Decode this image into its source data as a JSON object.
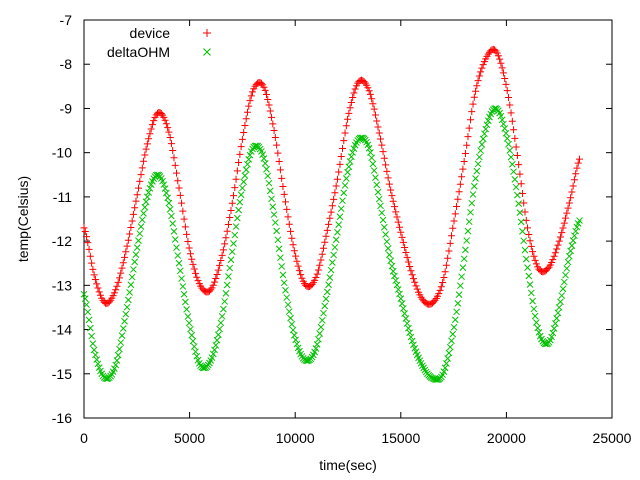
{
  "chart_data": {
    "type": "scatter",
    "title": "",
    "xlabel": "time(sec)",
    "ylabel": "temp(Celsius)",
    "xlim": [
      0,
      25000
    ],
    "ylim": [
      -16,
      -7
    ],
    "xticks": [
      0,
      5000,
      10000,
      15000,
      20000,
      25000
    ],
    "yticks": [
      -16,
      -15,
      -14,
      -13,
      -12,
      -11,
      -10,
      -9,
      -8,
      -7
    ],
    "xtick_labels": [
      "0",
      "5000",
      "10000",
      "15000",
      "20000",
      "25000"
    ],
    "ytick_labels": [
      "-16",
      "-15",
      "-14",
      "-13",
      "-12",
      "-11",
      "-10",
      "-9",
      "-8",
      "-7"
    ],
    "grid": false,
    "legend": "top-left",
    "series": [
      {
        "name": "device",
        "marker": "plus",
        "color": "#ff0000",
        "x": [
          0,
          500,
          1000,
          1500,
          2000,
          2500,
          3000,
          3500,
          4000,
          4500,
          5000,
          5500,
          6000,
          6500,
          7000,
          7500,
          8000,
          8500,
          9000,
          9500,
          10000,
          10500,
          11000,
          11500,
          12000,
          12500,
          13000,
          13500,
          14000,
          14500,
          15000,
          15500,
          16000,
          16500,
          17000,
          17500,
          18000,
          18500,
          19000,
          19500,
          20000,
          20500,
          21000,
          21500,
          22000,
          22500,
          23000,
          23500
        ],
        "y": [
          -11.7,
          -12.8,
          -13.4,
          -13.1,
          -12.2,
          -11.0,
          -9.8,
          -9.1,
          -9.5,
          -10.8,
          -12.2,
          -13.0,
          -13.1,
          -12.4,
          -11.2,
          -9.7,
          -8.6,
          -8.5,
          -9.5,
          -11.0,
          -12.3,
          -13.0,
          -12.8,
          -11.8,
          -10.6,
          -9.2,
          -8.4,
          -8.6,
          -9.6,
          -10.8,
          -11.8,
          -12.7,
          -13.3,
          -13.4,
          -12.9,
          -11.6,
          -10.2,
          -8.7,
          -7.9,
          -7.7,
          -8.5,
          -10.0,
          -11.7,
          -12.6,
          -12.6,
          -12.0,
          -11.1,
          -10.1
        ]
      },
      {
        "name": "deltaOHM",
        "marker": "cross",
        "color": "#00c000",
        "x": [
          0,
          500,
          1000,
          1500,
          2000,
          2500,
          3000,
          3500,
          4000,
          4500,
          5000,
          5500,
          6000,
          6500,
          7000,
          7500,
          8000,
          8500,
          9000,
          9500,
          10000,
          10500,
          11000,
          11500,
          12000,
          12500,
          13000,
          13500,
          14000,
          14500,
          15000,
          15500,
          16000,
          16500,
          17000,
          17500,
          18000,
          18500,
          19000,
          19500,
          20000,
          20500,
          21000,
          21500,
          22000,
          22500,
          23000,
          23500
        ],
        "y": [
          -13.2,
          -14.5,
          -15.1,
          -14.8,
          -13.6,
          -12.2,
          -11.0,
          -10.5,
          -11.1,
          -12.5,
          -13.9,
          -14.8,
          -14.7,
          -13.8,
          -12.3,
          -10.8,
          -9.9,
          -10.1,
          -11.4,
          -13.0,
          -14.2,
          -14.7,
          -14.4,
          -13.2,
          -11.8,
          -10.4,
          -9.7,
          -9.9,
          -11.1,
          -12.4,
          -13.3,
          -14.2,
          -14.8,
          -15.1,
          -15.0,
          -14.0,
          -12.4,
          -10.7,
          -9.5,
          -9.0,
          -9.6,
          -10.9,
          -12.6,
          -14.0,
          -14.3,
          -13.5,
          -12.3,
          -11.5
        ]
      }
    ]
  }
}
